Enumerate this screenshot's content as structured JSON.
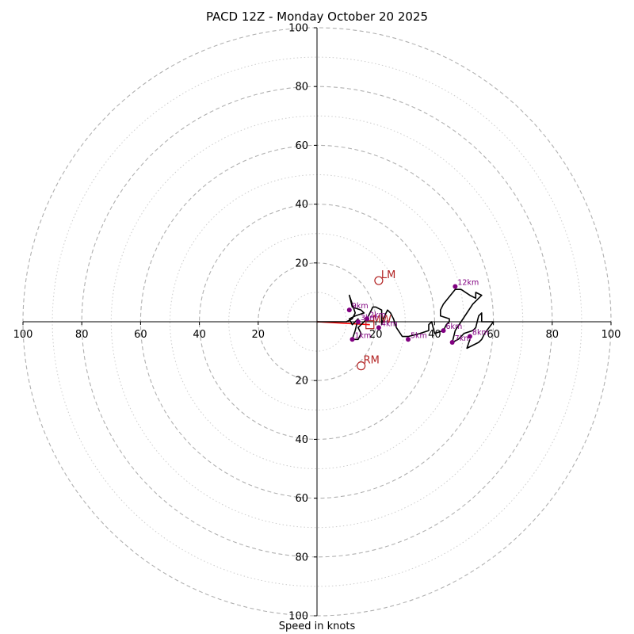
{
  "chart_data": {
    "type": "hodograph",
    "title": "PACD 12Z - Monday October 20 2025",
    "xlabel": "Speed in knots",
    "axis_range": [
      -100,
      100
    ],
    "ring_major_values": [
      20,
      40,
      60,
      80,
      100
    ],
    "ring_minor_values": [
      10,
      30,
      50,
      70,
      90
    ],
    "x_tick_labels": [
      "100",
      "80",
      "60",
      "40",
      "20",
      "20",
      "40",
      "60",
      "80",
      "100"
    ],
    "y_tick_labels": [
      "100",
      "80",
      "60",
      "40",
      "20",
      "20",
      "40",
      "60",
      "80",
      "100"
    ],
    "colors": {
      "trace": "#000000",
      "height_marker": "#800080",
      "motion_marker": "#b22222",
      "mean_wind": "#ff0000",
      "ring_major": "#b0b0b0",
      "ring_minor": "#cccccc"
    },
    "hodograph_trace": [
      [
        0,
        0
      ],
      [
        10,
        0
      ],
      [
        12,
        1
      ],
      [
        13,
        3
      ],
      [
        12,
        6
      ],
      [
        11,
        9
      ],
      [
        12,
        5
      ],
      [
        15,
        4
      ],
      [
        16,
        3
      ],
      [
        13,
        2
      ],
      [
        11,
        1
      ],
      [
        12,
        -1
      ],
      [
        14,
        1
      ],
      [
        13,
        -3
      ],
      [
        12,
        -6
      ],
      [
        14,
        -6
      ],
      [
        15,
        -4
      ],
      [
        14,
        -2
      ],
      [
        15,
        -1
      ],
      [
        17,
        1
      ],
      [
        18,
        3
      ],
      [
        19,
        5
      ],
      [
        20,
        5
      ],
      [
        22,
        4
      ],
      [
        22,
        1
      ],
      [
        22,
        -1
      ],
      [
        23,
        2
      ],
      [
        24,
        4
      ],
      [
        25,
        3
      ],
      [
        26,
        1
      ],
      [
        27,
        -2
      ],
      [
        29,
        -5
      ],
      [
        31,
        -5
      ],
      [
        35,
        -4
      ],
      [
        38,
        -3
      ],
      [
        38,
        -1
      ],
      [
        39,
        0
      ],
      [
        40,
        -4
      ],
      [
        43,
        -3
      ],
      [
        44,
        -1
      ],
      [
        45,
        0
      ],
      [
        45,
        1
      ],
      [
        42,
        2
      ],
      [
        42,
        4
      ],
      [
        43,
        6
      ],
      [
        47,
        11
      ],
      [
        49,
        11
      ],
      [
        52,
        9
      ],
      [
        54,
        8
      ],
      [
        54,
        10
      ],
      [
        56,
        9
      ],
      [
        53,
        6
      ],
      [
        49,
        0
      ],
      [
        47,
        -3
      ],
      [
        46,
        -7
      ],
      [
        48,
        -6
      ],
      [
        50,
        -4
      ],
      [
        53,
        -3
      ],
      [
        54,
        -2
      ],
      [
        55,
        2
      ],
      [
        56,
        3
      ],
      [
        56,
        0
      ],
      [
        58,
        0
      ],
      [
        60,
        0
      ],
      [
        57,
        -4
      ],
      [
        56,
        -6
      ],
      [
        55,
        -7
      ],
      [
        51,
        -9
      ],
      [
        52,
        -6
      ]
    ],
    "height_markers": [
      {
        "label": "1km",
        "u": 12,
        "v": -6
      },
      {
        "label": "2km",
        "u": 17,
        "v": 1
      },
      {
        "label": "3km",
        "u": 14,
        "v": 0
      },
      {
        "label": "4km",
        "u": 21,
        "v": -2
      },
      {
        "label": "5km",
        "u": 31,
        "v": -6
      },
      {
        "label": "6km",
        "u": 43,
        "v": -3
      },
      {
        "label": "7km",
        "u": 46,
        "v": -7
      },
      {
        "label": "8km",
        "u": 52,
        "v": -5
      },
      {
        "label": "9km",
        "u": 11,
        "v": 4
      },
      {
        "label": "12km",
        "u": 47,
        "v": 12
      }
    ],
    "storm_motions": [
      {
        "label": "LM",
        "u": 21,
        "v": 14
      },
      {
        "label": "RM",
        "u": 15,
        "v": -15
      },
      {
        "label": "MW",
        "u": 18,
        "v": -1
      }
    ],
    "mean_wind_vector": {
      "u": 18,
      "v": -1
    }
  }
}
